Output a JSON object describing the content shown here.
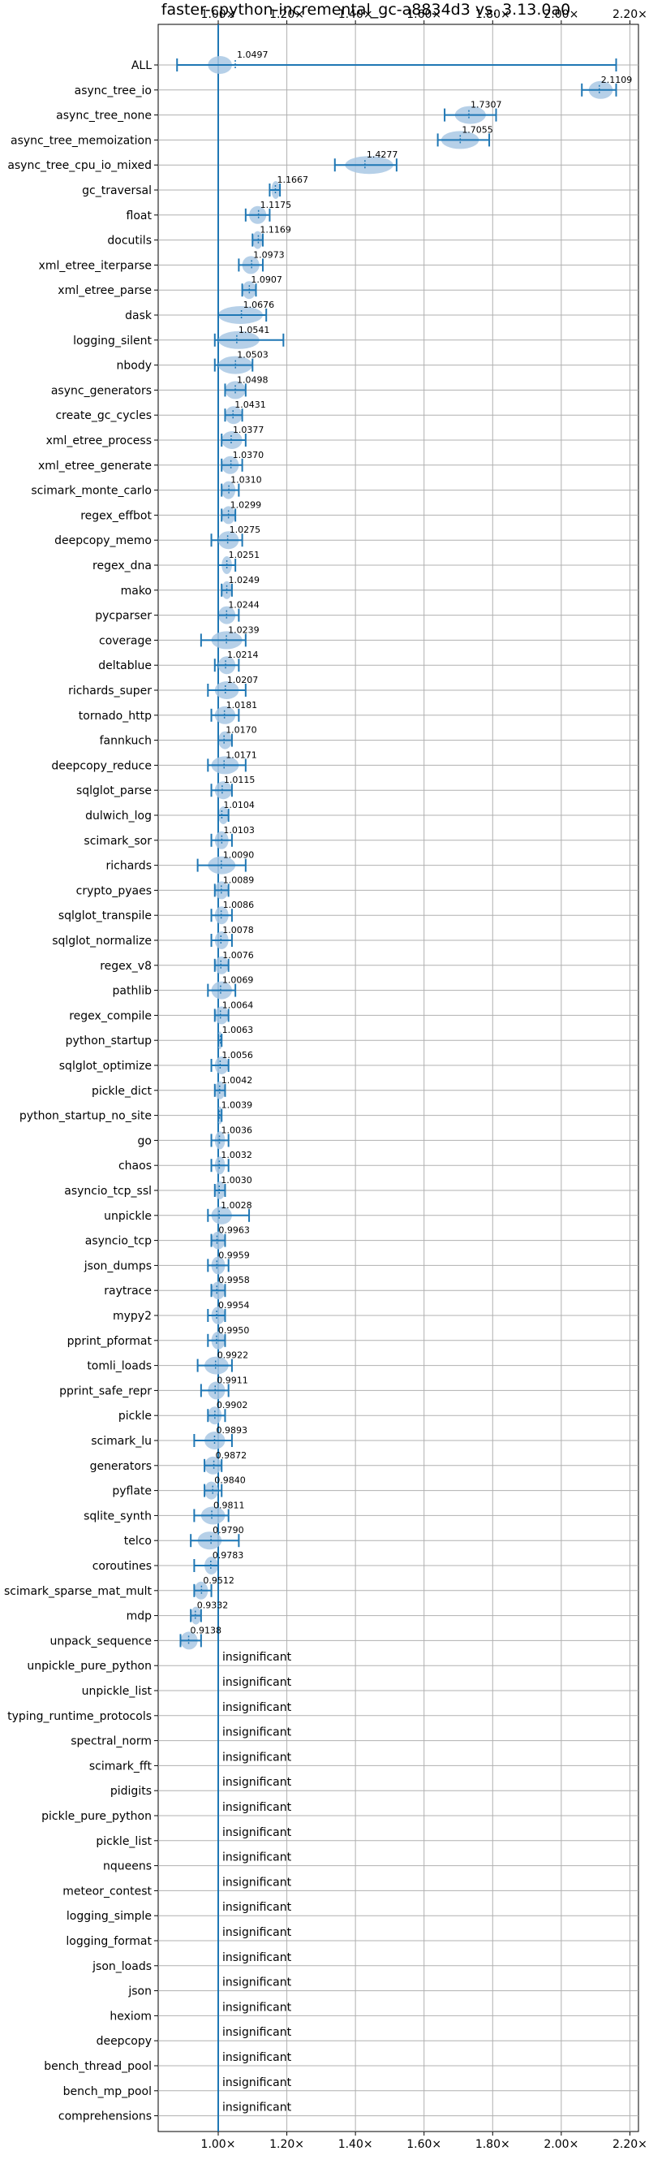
{
  "chart_data": {
    "type": "violin",
    "title": "faster-cpython-incremental_gc-a8834d3 vs. 3.13.0a0",
    "xlim": [
      0.825,
      2.225
    ],
    "x_ticks": [
      1.0,
      1.2,
      1.4,
      1.6,
      1.8,
      2.0,
      2.2
    ],
    "x_tick_labels": [
      "1.00×",
      "1.20×",
      "1.40×",
      "1.60×",
      "1.80×",
      "2.00×",
      "2.20×"
    ],
    "grid": true,
    "reference_line": 1.0,
    "insignificant_label": "insignificant",
    "colors": {
      "line": "#1f77b4",
      "violin": "#a9c8e4",
      "grid": "#b0b0b0"
    },
    "benchmarks": [
      {
        "name": "ALL",
        "label": "1.0497",
        "mean": 1.0497,
        "low": 0.88,
        "high": 2.16,
        "vlo": 0.97,
        "vhi": 1.04
      },
      {
        "name": "async_tree_io",
        "label": "2.1109",
        "mean": 2.1109,
        "low": 2.06,
        "high": 2.16,
        "vlo": 2.08,
        "vhi": 2.15
      },
      {
        "name": "async_tree_none",
        "label": "1.7307",
        "mean": 1.7307,
        "low": 1.66,
        "high": 1.81,
        "vlo": 1.69,
        "vhi": 1.78
      },
      {
        "name": "async_tree_memoization",
        "label": "1.7055",
        "mean": 1.7055,
        "low": 1.64,
        "high": 1.79,
        "vlo": 1.65,
        "vhi": 1.76
      },
      {
        "name": "async_tree_cpu_io_mixed",
        "label": "1.4277",
        "mean": 1.4277,
        "low": 1.34,
        "high": 1.52,
        "vlo": 1.37,
        "vhi": 1.51
      },
      {
        "name": "gc_traversal",
        "label": "1.1667",
        "mean": 1.1667,
        "low": 1.15,
        "high": 1.18,
        "vlo": 1.155,
        "vhi": 1.18
      },
      {
        "name": "float",
        "label": "1.1175",
        "mean": 1.1175,
        "low": 1.08,
        "high": 1.15,
        "vlo": 1.09,
        "vhi": 1.14
      },
      {
        "name": "docutils",
        "label": "1.1169",
        "mean": 1.1169,
        "low": 1.1,
        "high": 1.13,
        "vlo": 1.1,
        "vhi": 1.13
      },
      {
        "name": "xml_etree_iterparse",
        "label": "1.0973",
        "mean": 1.0973,
        "low": 1.06,
        "high": 1.13,
        "vlo": 1.07,
        "vhi": 1.12
      },
      {
        "name": "xml_etree_parse",
        "label": "1.0907",
        "mean": 1.0907,
        "low": 1.07,
        "high": 1.11,
        "vlo": 1.07,
        "vhi": 1.11
      },
      {
        "name": "dask",
        "label": "1.0676",
        "mean": 1.0676,
        "low": 1.0,
        "high": 1.14,
        "vlo": 1.0,
        "vhi": 1.13
      },
      {
        "name": "logging_silent",
        "label": "1.0541",
        "mean": 1.0541,
        "low": 0.99,
        "high": 1.19,
        "vlo": 1.0,
        "vhi": 1.12
      },
      {
        "name": "nbody",
        "label": "1.0503",
        "mean": 1.0503,
        "low": 0.99,
        "high": 1.1,
        "vlo": 1.0,
        "vhi": 1.1
      },
      {
        "name": "async_generators",
        "label": "1.0498",
        "mean": 1.0498,
        "low": 1.02,
        "high": 1.08,
        "vlo": 1.02,
        "vhi": 1.08
      },
      {
        "name": "create_gc_cycles",
        "label": "1.0431",
        "mean": 1.0431,
        "low": 1.02,
        "high": 1.07,
        "vlo": 1.02,
        "vhi": 1.07
      },
      {
        "name": "xml_etree_process",
        "label": "1.0377",
        "mean": 1.0377,
        "low": 1.01,
        "high": 1.08,
        "vlo": 1.01,
        "vhi": 1.07
      },
      {
        "name": "xml_etree_generate",
        "label": "1.0370",
        "mean": 1.037,
        "low": 1.01,
        "high": 1.07,
        "vlo": 1.01,
        "vhi": 1.06
      },
      {
        "name": "scimark_monte_carlo",
        "label": "1.0310",
        "mean": 1.031,
        "low": 1.01,
        "high": 1.06,
        "vlo": 1.01,
        "vhi": 1.05
      },
      {
        "name": "regex_effbot",
        "label": "1.0299",
        "mean": 1.0299,
        "low": 1.01,
        "high": 1.05,
        "vlo": 1.01,
        "vhi": 1.05
      },
      {
        "name": "deepcopy_memo",
        "label": "1.0275",
        "mean": 1.0275,
        "low": 0.98,
        "high": 1.07,
        "vlo": 1.0,
        "vhi": 1.06
      },
      {
        "name": "regex_dna",
        "label": "1.0251",
        "mean": 1.0251,
        "low": 1.0,
        "high": 1.05,
        "vlo": 1.01,
        "vhi": 1.04
      },
      {
        "name": "mako",
        "label": "1.0249",
        "mean": 1.0249,
        "low": 1.01,
        "high": 1.04,
        "vlo": 1.01,
        "vhi": 1.04
      },
      {
        "name": "pycparser",
        "label": "1.0244",
        "mean": 1.0244,
        "low": 1.0,
        "high": 1.06,
        "vlo": 1.0,
        "vhi": 1.05
      },
      {
        "name": "coverage",
        "label": "1.0239",
        "mean": 1.0239,
        "low": 0.95,
        "high": 1.08,
        "vlo": 0.98,
        "vhi": 1.07
      },
      {
        "name": "deltablue",
        "label": "1.0214",
        "mean": 1.0214,
        "low": 0.99,
        "high": 1.06,
        "vlo": 1.0,
        "vhi": 1.05
      },
      {
        "name": "richards_super",
        "label": "1.0207",
        "mean": 1.0207,
        "low": 0.97,
        "high": 1.08,
        "vlo": 0.99,
        "vhi": 1.06
      },
      {
        "name": "tornado_http",
        "label": "1.0181",
        "mean": 1.0181,
        "low": 0.98,
        "high": 1.06,
        "vlo": 0.99,
        "vhi": 1.05
      },
      {
        "name": "fannkuch",
        "label": "1.0170",
        "mean": 1.017,
        "low": 1.0,
        "high": 1.04,
        "vlo": 1.0,
        "vhi": 1.04
      },
      {
        "name": "deepcopy_reduce",
        "label": "1.0171",
        "mean": 1.0171,
        "low": 0.97,
        "high": 1.08,
        "vlo": 0.98,
        "vhi": 1.06
      },
      {
        "name": "sqlglot_parse",
        "label": "1.0115",
        "mean": 1.0115,
        "low": 0.98,
        "high": 1.04,
        "vlo": 0.99,
        "vhi": 1.04
      },
      {
        "name": "dulwich_log",
        "label": "1.0104",
        "mean": 1.0104,
        "low": 1.0,
        "high": 1.03,
        "vlo": 1.0,
        "vhi": 1.03
      },
      {
        "name": "scimark_sor",
        "label": "1.0103",
        "mean": 1.0103,
        "low": 0.98,
        "high": 1.04,
        "vlo": 0.99,
        "vhi": 1.03
      },
      {
        "name": "richards",
        "label": "1.0090",
        "mean": 1.009,
        "low": 0.94,
        "high": 1.08,
        "vlo": 0.97,
        "vhi": 1.05
      },
      {
        "name": "crypto_pyaes",
        "label": "1.0089",
        "mean": 1.0089,
        "low": 0.99,
        "high": 1.03,
        "vlo": 0.99,
        "vhi": 1.03
      },
      {
        "name": "sqlglot_transpile",
        "label": "1.0086",
        "mean": 1.0086,
        "low": 0.98,
        "high": 1.04,
        "vlo": 0.99,
        "vhi": 1.03
      },
      {
        "name": "sqlglot_normalize",
        "label": "1.0078",
        "mean": 1.0078,
        "low": 0.98,
        "high": 1.04,
        "vlo": 0.99,
        "vhi": 1.03
      },
      {
        "name": "regex_v8",
        "label": "1.0076",
        "mean": 1.0076,
        "low": 0.99,
        "high": 1.03,
        "vlo": 0.99,
        "vhi": 1.03
      },
      {
        "name": "pathlib",
        "label": "1.0069",
        "mean": 1.0069,
        "low": 0.97,
        "high": 1.05,
        "vlo": 0.98,
        "vhi": 1.04
      },
      {
        "name": "regex_compile",
        "label": "1.0064",
        "mean": 1.0064,
        "low": 0.99,
        "high": 1.03,
        "vlo": 0.99,
        "vhi": 1.03
      },
      {
        "name": "python_startup",
        "label": "1.0063",
        "mean": 1.0063,
        "low": 1.0,
        "high": 1.01,
        "vlo": 1.0,
        "vhi": 1.01
      },
      {
        "name": "sqlglot_optimize",
        "label": "1.0056",
        "mean": 1.0056,
        "low": 0.98,
        "high": 1.03,
        "vlo": 0.99,
        "vhi": 1.03
      },
      {
        "name": "pickle_dict",
        "label": "1.0042",
        "mean": 1.0042,
        "low": 0.99,
        "high": 1.02,
        "vlo": 0.99,
        "vhi": 1.02
      },
      {
        "name": "python_startup_no_site",
        "label": "1.0039",
        "mean": 1.0039,
        "low": 1.0,
        "high": 1.01,
        "vlo": 1.0,
        "vhi": 1.01
      },
      {
        "name": "go",
        "label": "1.0036",
        "mean": 1.0036,
        "low": 0.98,
        "high": 1.03,
        "vlo": 0.99,
        "vhi": 1.02
      },
      {
        "name": "chaos",
        "label": "1.0032",
        "mean": 1.0032,
        "low": 0.98,
        "high": 1.03,
        "vlo": 0.99,
        "vhi": 1.02
      },
      {
        "name": "asyncio_tcp_ssl",
        "label": "1.0030",
        "mean": 1.003,
        "low": 0.99,
        "high": 1.02,
        "vlo": 0.99,
        "vhi": 1.02
      },
      {
        "name": "unpickle",
        "label": "1.0028",
        "mean": 1.0028,
        "low": 0.97,
        "high": 1.09,
        "vlo": 0.98,
        "vhi": 1.04
      },
      {
        "name": "asyncio_tcp",
        "label": "0.9963",
        "mean": 0.9963,
        "low": 0.98,
        "high": 1.02,
        "vlo": 0.98,
        "vhi": 1.02
      },
      {
        "name": "json_dumps",
        "label": "0.9959",
        "mean": 0.9959,
        "low": 0.97,
        "high": 1.03,
        "vlo": 0.98,
        "vhi": 1.02
      },
      {
        "name": "raytrace",
        "label": "0.9958",
        "mean": 0.9958,
        "low": 0.98,
        "high": 1.02,
        "vlo": 0.98,
        "vhi": 1.02
      },
      {
        "name": "mypy2",
        "label": "0.9954",
        "mean": 0.9954,
        "low": 0.97,
        "high": 1.02,
        "vlo": 0.98,
        "vhi": 1.02
      },
      {
        "name": "pprint_pformat",
        "label": "0.9950",
        "mean": 0.995,
        "low": 0.97,
        "high": 1.02,
        "vlo": 0.98,
        "vhi": 1.02
      },
      {
        "name": "tomli_loads",
        "label": "0.9922",
        "mean": 0.9922,
        "low": 0.94,
        "high": 1.04,
        "vlo": 0.96,
        "vhi": 1.03
      },
      {
        "name": "pprint_safe_repr",
        "label": "0.9911",
        "mean": 0.9911,
        "low": 0.95,
        "high": 1.03,
        "vlo": 0.97,
        "vhi": 1.02
      },
      {
        "name": "pickle",
        "label": "0.9902",
        "mean": 0.9902,
        "low": 0.97,
        "high": 1.02,
        "vlo": 0.97,
        "vhi": 1.01
      },
      {
        "name": "scimark_lu",
        "label": "0.9893",
        "mean": 0.9893,
        "low": 0.93,
        "high": 1.04,
        "vlo": 0.96,
        "vhi": 1.02
      },
      {
        "name": "generators",
        "label": "0.9872",
        "mean": 0.9872,
        "low": 0.96,
        "high": 1.01,
        "vlo": 0.96,
        "vhi": 1.01
      },
      {
        "name": "pyflate",
        "label": "0.9840",
        "mean": 0.984,
        "low": 0.96,
        "high": 1.01,
        "vlo": 0.96,
        "vhi": 1.0
      },
      {
        "name": "sqlite_synth",
        "label": "0.9811",
        "mean": 0.9811,
        "low": 0.93,
        "high": 1.03,
        "vlo": 0.95,
        "vhi": 1.02
      },
      {
        "name": "telco",
        "label": "0.9790",
        "mean": 0.979,
        "low": 0.92,
        "high": 1.06,
        "vlo": 0.94,
        "vhi": 1.01
      },
      {
        "name": "coroutines",
        "label": "0.9783",
        "mean": 0.9783,
        "low": 0.93,
        "high": 1.0,
        "vlo": 0.96,
        "vhi": 1.0
      },
      {
        "name": "scimark_sparse_mat_mult",
        "label": "0.9512",
        "mean": 0.9512,
        "low": 0.93,
        "high": 0.98,
        "vlo": 0.93,
        "vhi": 0.97
      },
      {
        "name": "mdp",
        "label": "0.9332",
        "mean": 0.9332,
        "low": 0.92,
        "high": 0.95,
        "vlo": 0.92,
        "vhi": 0.95
      },
      {
        "name": "unpack_sequence",
        "label": "0.9138",
        "mean": 0.9138,
        "low": 0.89,
        "high": 0.95,
        "vlo": 0.89,
        "vhi": 0.94
      },
      {
        "name": "unpickle_pure_python",
        "insignificant": true
      },
      {
        "name": "unpickle_list",
        "insignificant": true
      },
      {
        "name": "typing_runtime_protocols",
        "insignificant": true
      },
      {
        "name": "spectral_norm",
        "insignificant": true
      },
      {
        "name": "scimark_fft",
        "insignificant": true
      },
      {
        "name": "pidigits",
        "insignificant": true
      },
      {
        "name": "pickle_pure_python",
        "insignificant": true
      },
      {
        "name": "pickle_list",
        "insignificant": true
      },
      {
        "name": "nqueens",
        "insignificant": true
      },
      {
        "name": "meteor_contest",
        "insignificant": true
      },
      {
        "name": "logging_simple",
        "insignificant": true
      },
      {
        "name": "logging_format",
        "insignificant": true
      },
      {
        "name": "json_loads",
        "insignificant": true
      },
      {
        "name": "json",
        "insignificant": true
      },
      {
        "name": "hexiom",
        "insignificant": true
      },
      {
        "name": "deepcopy",
        "insignificant": true
      },
      {
        "name": "bench_thread_pool",
        "insignificant": true
      },
      {
        "name": "bench_mp_pool",
        "insignificant": true
      },
      {
        "name": "comprehensions",
        "insignificant": true
      }
    ]
  }
}
